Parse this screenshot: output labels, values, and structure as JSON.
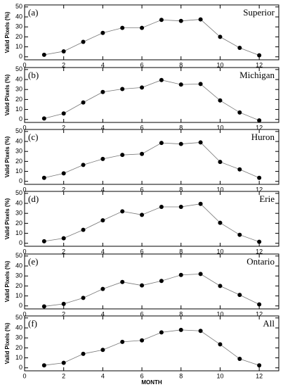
{
  "chart_data": [
    {
      "type": "line",
      "title": "(a)",
      "annotation": "Superior",
      "ylabel": "Valid Pixels (%)",
      "color": "#777777",
      "x": [
        1,
        2,
        3,
        4,
        5,
        6,
        7,
        8,
        9,
        10,
        11,
        12
      ],
      "values": [
        2,
        5.5,
        15,
        24,
        29,
        29,
        37,
        36,
        37.5,
        20,
        9,
        1.5
      ],
      "xlim": [
        0,
        13
      ],
      "xticks": [
        0,
        2,
        4,
        6,
        8,
        10,
        12
      ],
      "ylim": [
        -3,
        52
      ],
      "yticks": [
        0,
        10,
        20,
        30,
        40,
        50
      ]
    },
    {
      "type": "line",
      "title": "(b)",
      "annotation": "Michigan",
      "ylabel": "Valid Pixels (%)",
      "color": "#777777",
      "x": [
        1,
        2,
        3,
        4,
        5,
        6,
        7,
        8,
        9,
        10,
        11,
        12
      ],
      "values": [
        1,
        6,
        17,
        27.5,
        30.5,
        32,
        39.5,
        35,
        35.5,
        19,
        7,
        -1
      ],
      "xlim": [
        0,
        13
      ],
      "xticks": [
        0,
        2,
        4,
        6,
        8,
        10,
        12
      ],
      "ylim": [
        -3,
        52
      ],
      "yticks": [
        0,
        10,
        20,
        30,
        40,
        50
      ]
    },
    {
      "type": "line",
      "title": "(c)",
      "annotation": "Huron",
      "ylabel": "Valid Pixels (%)",
      "color": "#777777",
      "x": [
        1,
        2,
        3,
        4,
        5,
        6,
        7,
        8,
        9,
        10,
        11,
        12
      ],
      "values": [
        3.5,
        8,
        16.5,
        22.5,
        26.5,
        27.5,
        38.5,
        37.5,
        39,
        19.5,
        12,
        3.5
      ],
      "xlim": [
        0,
        13
      ],
      "xticks": [
        0,
        2,
        4,
        6,
        8,
        10,
        12
      ],
      "ylim": [
        -3,
        52
      ],
      "yticks": [
        0,
        10,
        20,
        30,
        40,
        50
      ]
    },
    {
      "type": "line",
      "title": "(d)",
      "annotation": "Erie",
      "ylabel": "Valid Pixels (%)",
      "color": "#777777",
      "x": [
        1,
        2,
        3,
        4,
        5,
        6,
        7,
        8,
        9,
        10,
        11,
        12
      ],
      "values": [
        2,
        5,
        13.5,
        23,
        32,
        28.5,
        36.5,
        36.5,
        39.5,
        20.5,
        8.5,
        1.5
      ],
      "xlim": [
        0,
        13
      ],
      "xticks": [
        0,
        2,
        4,
        6,
        8,
        10,
        12
      ],
      "ylim": [
        -3,
        52
      ],
      "yticks": [
        0,
        10,
        20,
        30,
        40,
        50
      ]
    },
    {
      "type": "line",
      "title": "(e)",
      "annotation": "Ontario",
      "ylabel": "Valid Pixels (%)",
      "color": "#777777",
      "x": [
        1,
        2,
        3,
        4,
        5,
        6,
        7,
        8,
        9,
        10,
        11,
        12
      ],
      "values": [
        -0.5,
        2,
        8,
        17,
        24,
        20.5,
        25,
        31,
        32,
        20,
        11,
        1.5
      ],
      "xlim": [
        0,
        13
      ],
      "xticks": [
        0,
        2,
        4,
        6,
        8,
        10,
        12
      ],
      "ylim": [
        -3,
        52
      ],
      "yticks": [
        0,
        10,
        20,
        30,
        40,
        50
      ]
    },
    {
      "type": "line",
      "title": "(f)",
      "annotation": "All",
      "ylabel": "Valid Pixels (%)",
      "xlabel": "MONTH",
      "color": "#777777",
      "x": [
        1,
        2,
        3,
        4,
        5,
        6,
        7,
        8,
        9,
        10,
        11,
        12
      ],
      "values": [
        2.5,
        5,
        14,
        18,
        26,
        27.5,
        35.5,
        38,
        37,
        23.5,
        9,
        2.5
      ],
      "xlim": [
        0,
        13
      ],
      "xticks": [
        0,
        2,
        4,
        6,
        8,
        10,
        12
      ],
      "ylim": [
        -3,
        52
      ],
      "yticks": [
        0,
        10,
        20,
        30,
        40,
        50
      ]
    }
  ]
}
